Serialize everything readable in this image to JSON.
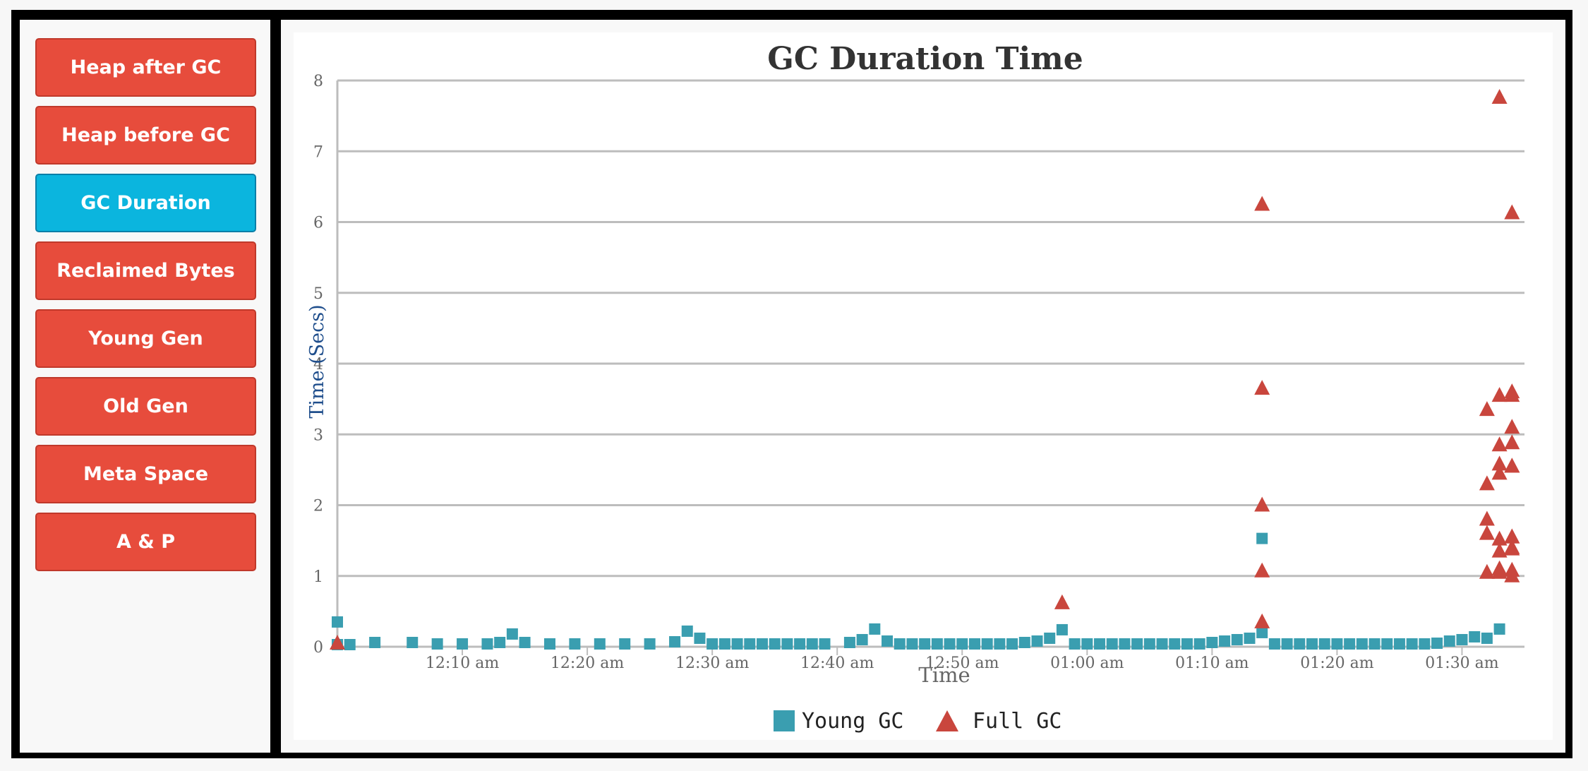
{
  "sidebar": {
    "items": [
      {
        "label": "Heap after GC",
        "name": "nav-heap-after-gc",
        "active": false
      },
      {
        "label": "Heap before GC",
        "name": "nav-heap-before-gc",
        "active": false
      },
      {
        "label": "GC Duration",
        "name": "nav-gc-duration",
        "active": true
      },
      {
        "label": "Reclaimed Bytes",
        "name": "nav-reclaimed-bytes",
        "active": false
      },
      {
        "label": "Young Gen",
        "name": "nav-young-gen",
        "active": false
      },
      {
        "label": "Old Gen",
        "name": "nav-old-gen",
        "active": false
      },
      {
        "label": "Meta Space",
        "name": "nav-meta-space",
        "active": false
      },
      {
        "label": "A & P",
        "name": "nav-a-and-p",
        "active": false
      }
    ]
  },
  "colors": {
    "button": "#e74c3c",
    "button_active": "#0bb5de",
    "young_gc": "#3a9eb0",
    "full_gc": "#c9463d",
    "axis_title_y": "#1f4e8c"
  },
  "chart_data": {
    "type": "scatter",
    "title": "GC Duration Time",
    "xlabel": "Time",
    "ylabel": "Time (Secs)",
    "ylim": [
      0,
      8
    ],
    "yticks": [
      "0",
      "1",
      "2",
      "3",
      "4",
      "5",
      "6",
      "7",
      "8"
    ],
    "xlim": [
      "00:00",
      "01:35"
    ],
    "xticks": [
      "12:10 am",
      "12:20 am",
      "12:30 am",
      "12:40 am",
      "12:50 am",
      "01:00 am",
      "01:10 am",
      "01:20 am",
      "01:30 am"
    ],
    "grid": true,
    "legend": "bottom-center",
    "series": [
      {
        "name": "Young GC",
        "marker": "square",
        "points": [
          [
            "00:00",
            0.35
          ],
          [
            "00:00",
            0.03
          ],
          [
            "00:01",
            0.03
          ],
          [
            "00:03",
            0.06
          ],
          [
            "00:06",
            0.06
          ],
          [
            "00:08",
            0.04
          ],
          [
            "00:10",
            0.04
          ],
          [
            "00:12",
            0.04
          ],
          [
            "00:13",
            0.06
          ],
          [
            "00:14",
            0.18
          ],
          [
            "00:15",
            0.06
          ],
          [
            "00:17",
            0.04
          ],
          [
            "00:19",
            0.04
          ],
          [
            "00:21",
            0.04
          ],
          [
            "00:23",
            0.04
          ],
          [
            "00:25",
            0.04
          ],
          [
            "00:27",
            0.07
          ],
          [
            "00:28",
            0.22
          ],
          [
            "00:29",
            0.12
          ],
          [
            "00:30",
            0.04
          ],
          [
            "00:31",
            0.04
          ],
          [
            "00:32",
            0.04
          ],
          [
            "00:33",
            0.04
          ],
          [
            "00:34",
            0.04
          ],
          [
            "00:35",
            0.04
          ],
          [
            "00:36",
            0.04
          ],
          [
            "00:37",
            0.04
          ],
          [
            "00:38",
            0.04
          ],
          [
            "00:39",
            0.04
          ],
          [
            "00:41",
            0.06
          ],
          [
            "00:42",
            0.1
          ],
          [
            "00:43",
            0.25
          ],
          [
            "00:44",
            0.08
          ],
          [
            "00:45",
            0.04
          ],
          [
            "00:46",
            0.04
          ],
          [
            "00:47",
            0.04
          ],
          [
            "00:48",
            0.04
          ],
          [
            "00:49",
            0.04
          ],
          [
            "00:50",
            0.04
          ],
          [
            "00:51",
            0.04
          ],
          [
            "00:52",
            0.04
          ],
          [
            "00:53",
            0.04
          ],
          [
            "00:54",
            0.04
          ],
          [
            "00:55",
            0.06
          ],
          [
            "00:56",
            0.08
          ],
          [
            "00:57",
            0.12
          ],
          [
            "00:58",
            0.24
          ],
          [
            "00:59",
            0.04
          ],
          [
            "01:00",
            0.04
          ],
          [
            "01:01",
            0.04
          ],
          [
            "01:02",
            0.04
          ],
          [
            "01:03",
            0.04
          ],
          [
            "01:04",
            0.04
          ],
          [
            "01:05",
            0.04
          ],
          [
            "01:06",
            0.04
          ],
          [
            "01:07",
            0.04
          ],
          [
            "01:08",
            0.04
          ],
          [
            "01:09",
            0.04
          ],
          [
            "01:10",
            0.06
          ],
          [
            "01:11",
            0.08
          ],
          [
            "01:12",
            0.1
          ],
          [
            "01:13",
            0.12
          ],
          [
            "01:14",
            0.2
          ],
          [
            "01:14",
            1.53
          ],
          [
            "01:15",
            0.04
          ],
          [
            "01:16",
            0.04
          ],
          [
            "01:17",
            0.04
          ],
          [
            "01:18",
            0.04
          ],
          [
            "01:19",
            0.04
          ],
          [
            "01:20",
            0.04
          ],
          [
            "01:21",
            0.04
          ],
          [
            "01:22",
            0.04
          ],
          [
            "01:23",
            0.04
          ],
          [
            "01:24",
            0.04
          ],
          [
            "01:25",
            0.04
          ],
          [
            "01:26",
            0.04
          ],
          [
            "01:27",
            0.04
          ],
          [
            "01:28",
            0.05
          ],
          [
            "01:29",
            0.08
          ],
          [
            "01:30",
            0.1
          ],
          [
            "01:31",
            0.14
          ],
          [
            "01:32",
            0.12
          ],
          [
            "01:33",
            0.25
          ]
        ]
      },
      {
        "name": "Full GC",
        "marker": "triangle",
        "points": [
          [
            "00:00",
            0.05
          ],
          [
            "00:58",
            0.62
          ],
          [
            "01:14",
            6.25
          ],
          [
            "01:14",
            3.65
          ],
          [
            "01:14",
            2.0
          ],
          [
            "01:14",
            1.07
          ],
          [
            "01:14",
            0.35
          ],
          [
            "01:33",
            7.76
          ],
          [
            "01:34",
            6.13
          ],
          [
            "01:32",
            3.35
          ],
          [
            "01:33",
            3.55
          ],
          [
            "01:34",
            3.6
          ],
          [
            "01:34",
            3.55
          ],
          [
            "01:34",
            3.1
          ],
          [
            "01:33",
            2.85
          ],
          [
            "01:34",
            2.88
          ],
          [
            "01:32",
            2.3
          ],
          [
            "01:33",
            2.58
          ],
          [
            "01:33",
            2.45
          ],
          [
            "01:34",
            2.55
          ],
          [
            "01:34",
            2.55
          ],
          [
            "01:32",
            1.8
          ],
          [
            "01:32",
            1.6
          ],
          [
            "01:33",
            1.52
          ],
          [
            "01:34",
            1.55
          ],
          [
            "01:34",
            1.55
          ],
          [
            "01:33",
            1.35
          ],
          [
            "01:34",
            1.38
          ],
          [
            "01:34",
            1.4
          ],
          [
            "01:32",
            1.05
          ],
          [
            "01:33",
            1.1
          ],
          [
            "01:33",
            1.05
          ],
          [
            "01:34",
            1.08
          ],
          [
            "01:34",
            1.0
          ]
        ]
      }
    ]
  }
}
